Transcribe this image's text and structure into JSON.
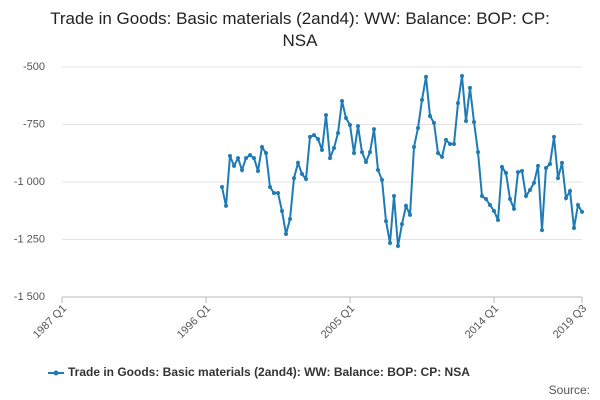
{
  "chart_data": {
    "type": "line",
    "title": "Trade in Goods: Basic materials (2and4): WW: Balance: BOP: CP: NSA",
    "source": "Source:",
    "categories": [
      "1987 Q1",
      null,
      null,
      null,
      null,
      null,
      null,
      null,
      null,
      null,
      null,
      null,
      null,
      null,
      null,
      null,
      null,
      null,
      null,
      null,
      null,
      null,
      null,
      null,
      null,
      null,
      null,
      null,
      null,
      null,
      null,
      null,
      null,
      null,
      null,
      null,
      "1996 Q1",
      null,
      null,
      null,
      null,
      null,
      null,
      null,
      null,
      null,
      null,
      null,
      null,
      null,
      null,
      null,
      null,
      null,
      null,
      null,
      null,
      null,
      null,
      null,
      null,
      null,
      null,
      null,
      null,
      null,
      null,
      null,
      null,
      null,
      null,
      null,
      "2005 Q1",
      null,
      null,
      null,
      null,
      null,
      null,
      null,
      null,
      null,
      null,
      null,
      null,
      null,
      null,
      null,
      null,
      null,
      null,
      null,
      null,
      null,
      null,
      null,
      null,
      null,
      null,
      null,
      null,
      null,
      null,
      null,
      null,
      null,
      null,
      null,
      "2014 Q1",
      null,
      null,
      null,
      null,
      null,
      null,
      null,
      null,
      null,
      null,
      null,
      null,
      null,
      null,
      null,
      null,
      null,
      null,
      null,
      null,
      null,
      "2019 Q3"
    ],
    "series": [
      {
        "name": "Trade in Goods: Basic materials (2and4): WW: Balance: BOP: CP: NSA",
        "color": "#1f7bb6",
        "values": [
          null,
          null,
          null,
          null,
          null,
          null,
          null,
          null,
          null,
          null,
          null,
          null,
          null,
          null,
          null,
          null,
          null,
          null,
          null,
          null,
          null,
          null,
          null,
          null,
          null,
          null,
          null,
          null,
          null,
          null,
          null,
          null,
          null,
          null,
          null,
          null,
          null,
          null,
          null,
          null,
          -1022,
          -1104,
          -887,
          -930,
          -896,
          -948,
          -896,
          -883,
          -896,
          -952,
          -848,
          -874,
          -1022,
          -1048,
          -1048,
          -1126,
          -1226,
          -1161,
          -983,
          -917,
          -965,
          -987,
          -804,
          -796,
          -813,
          -861,
          -709,
          -896,
          -852,
          -787,
          -648,
          -722,
          -752,
          -874,
          -757,
          -870,
          -913,
          -870,
          -770,
          -948,
          -991,
          -1170,
          -1265,
          -1061,
          -1278,
          -1183,
          -1104,
          -1143,
          -848,
          -765,
          -643,
          -543,
          -713,
          -743,
          -874,
          -891,
          -817,
          -835,
          -835,
          -657,
          -539,
          -735,
          -591,
          -739,
          -870,
          -1061,
          -1074,
          -1100,
          -1126,
          -1165,
          -935,
          -961,
          -1074,
          -1117,
          -957,
          -952,
          -1061,
          -1035,
          -1004,
          -930,
          -1209,
          -939,
          -922,
          -804,
          -983,
          -917,
          -1070,
          -1039,
          -1200,
          -1100,
          -1130
        ]
      }
    ],
    "ylim": [
      -1500,
      -500
    ],
    "yticks": [
      -500,
      -750,
      {
        "value": -1000,
        "label": "-1 000"
      },
      {
        "value": -1250,
        "label": "-1 250"
      },
      {
        "value": -1500,
        "label": "-1 500"
      }
    ],
    "grid": true
  }
}
